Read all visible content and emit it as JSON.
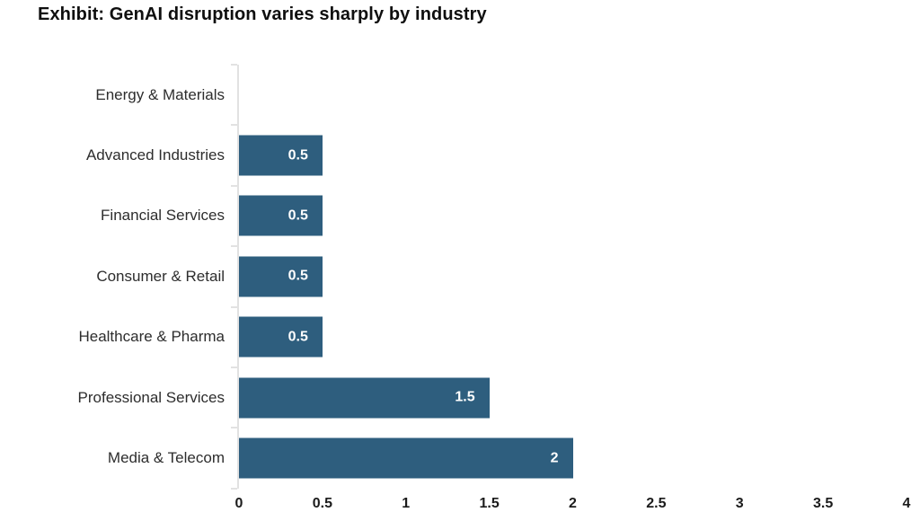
{
  "chart_data": {
    "type": "bar",
    "orientation": "horizontal",
    "title": "Exhibit: GenAI disruption varies sharply by industry",
    "categories": [
      "Energy & Materials",
      "Advanced Industries",
      "Financial Services",
      "Consumer & Retail",
      "Healthcare & Pharma",
      "Professional Services",
      "Media & Telecom"
    ],
    "values": [
      0,
      0.5,
      0.5,
      0.5,
      0.5,
      1.5,
      2
    ],
    "value_labels": [
      "",
      "0.5",
      "0.5",
      "0.5",
      "0.5",
      "1.5",
      "2"
    ],
    "xlabel": "",
    "ylabel": "",
    "xlim": [
      0,
      4
    ],
    "x_ticks": [
      0,
      0.5,
      1,
      1.5,
      2,
      2.5,
      3,
      3.5,
      4
    ],
    "x_tick_labels": [
      "0",
      "0.5",
      "1",
      "1.5",
      "2",
      "2.5",
      "3",
      "3.5",
      "4"
    ],
    "grid": false,
    "legend": false,
    "colors": {
      "bar": "#2e5e7e",
      "value_label": "#ffffff",
      "axis": "#e2e2e2",
      "title_text": "#0f0f0f",
      "category_text": "#2d2d2d",
      "tick_text": "#1b1b1b",
      "background": "#ffffff"
    }
  }
}
